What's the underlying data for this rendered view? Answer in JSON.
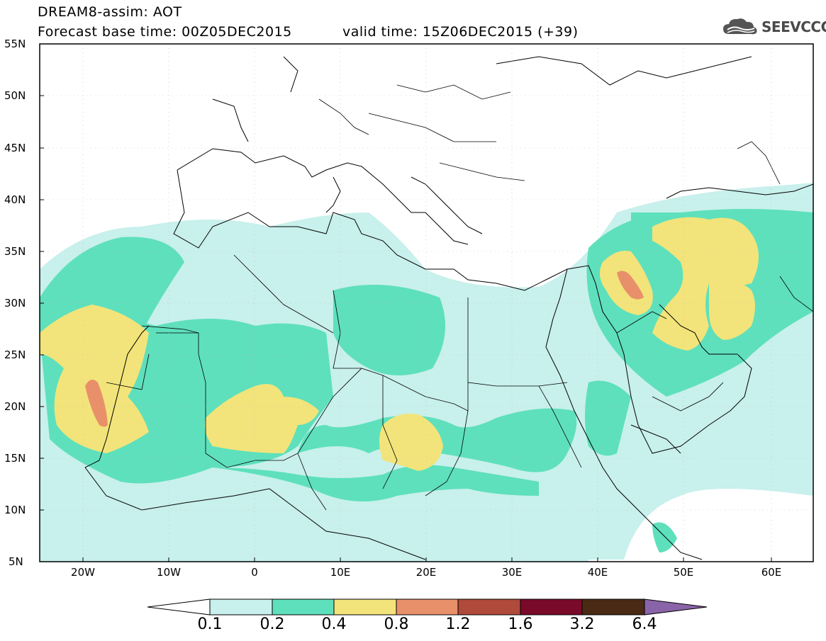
{
  "header": {
    "line1": "DREAM8-assim: AOT",
    "line2_left": "Forecast base time: 00Z05DEC2015",
    "line2_right": "valid time: 15Z06DEC2015 (+39)",
    "logo_text": "SEEVCCC",
    "logo_icon": "cloud-icon"
  },
  "map": {
    "lat_labels": [
      "55N",
      "50N",
      "45N",
      "40N",
      "35N",
      "30N",
      "25N",
      "20N",
      "15N",
      "10N",
      "5N"
    ],
    "lon_labels": [
      "20W",
      "10W",
      "0",
      "10E",
      "20E",
      "30E",
      "40E",
      "50E",
      "60E"
    ]
  },
  "colorbar": {
    "labels": [
      "0.1",
      "0.2",
      "0.4",
      "0.8",
      "1.2",
      "1.6",
      "3.2",
      "6.4"
    ],
    "colors": [
      "#c8f0ec",
      "#5ee0bc",
      "#f2e47a",
      "#e8906a",
      "#b04a3a",
      "#7a0a2a",
      "#4a2a14",
      "#8a64a8"
    ]
  }
}
